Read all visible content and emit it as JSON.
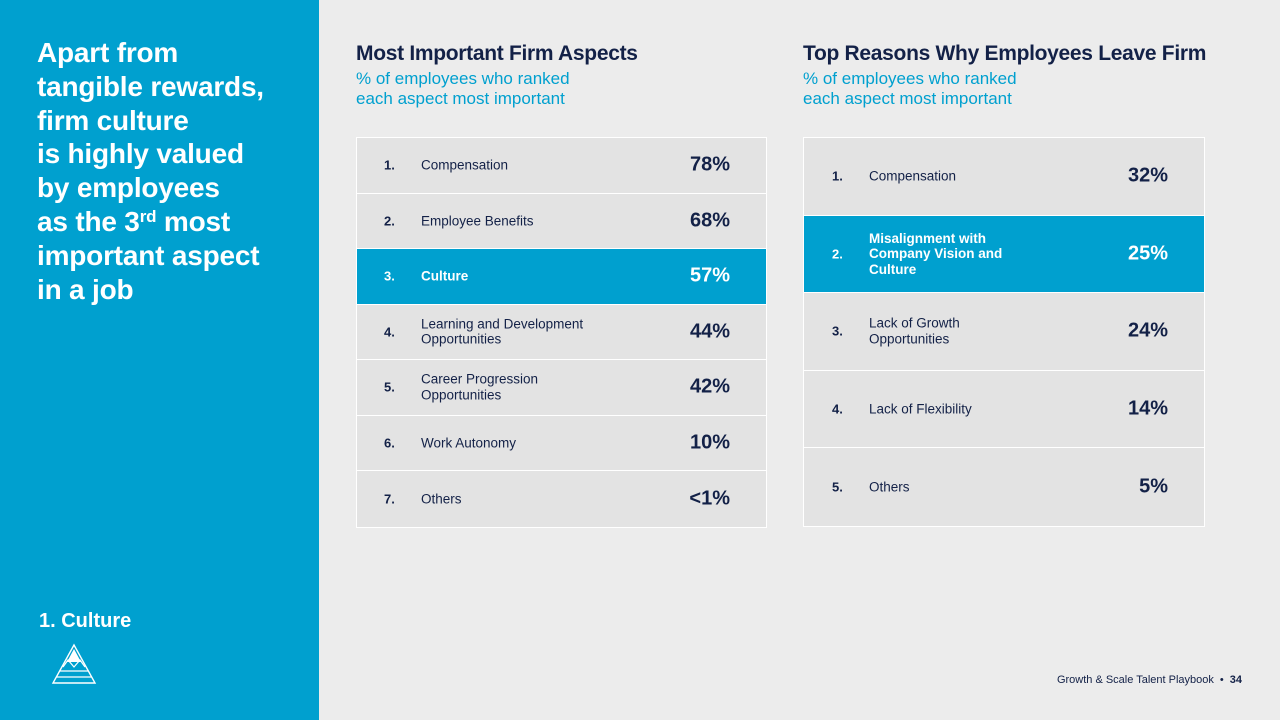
{
  "left_panel": {
    "headline_lines": [
      "Apart from",
      "tangible rewards,",
      "firm culture",
      "is highly valued",
      "by employees",
      "important aspect",
      "in a job"
    ],
    "headline_rank_prefix": "as the 3",
    "headline_rank_suffix": "rd",
    "headline_rank_rest": " most",
    "section_label": "1. Culture",
    "logo_icon": "pyramid-logo-icon"
  },
  "important_aspects": {
    "title": "Most Important Firm Aspects",
    "subtitle_lines": [
      "% of employees who ranked",
      "each aspect most important"
    ],
    "rows": [
      {
        "rank": "1.",
        "label": "Compensation",
        "pct": "78%",
        "highlight": false
      },
      {
        "rank": "2.",
        "label": "Employee Benefits",
        "pct": "68%",
        "highlight": false
      },
      {
        "rank": "3.",
        "label": "Culture",
        "pct": "57%",
        "highlight": true
      },
      {
        "rank": "4.",
        "label": "Learning and Development Opportunities",
        "pct": "44%",
        "highlight": false
      },
      {
        "rank": "5.",
        "label": "Career Progression Opportunities",
        "pct": "42%",
        "highlight": false
      },
      {
        "rank": "6.",
        "label": "Work Autonomy",
        "pct": "10%",
        "highlight": false
      },
      {
        "rank": "7.",
        "label": "Others",
        "pct": "<1%",
        "highlight": false
      }
    ]
  },
  "leave_reasons": {
    "title": "Top Reasons Why Employees Leave Firm",
    "subtitle_lines": [
      "% of employees who ranked",
      "each aspect most important"
    ],
    "rows": [
      {
        "rank": "1.",
        "label": "Compensation",
        "pct": "32%",
        "highlight": false
      },
      {
        "rank": "2.",
        "label": "Misalignment with Company Vision and Culture",
        "pct": "25%",
        "highlight": true
      },
      {
        "rank": "3.",
        "label": "Lack of Growth Opportunities",
        "pct": "24%",
        "highlight": false
      },
      {
        "rank": "4.",
        "label": "Lack of Flexibility",
        "pct": "14%",
        "highlight": false
      },
      {
        "rank": "5.",
        "label": "Others",
        "pct": "5%",
        "highlight": false
      }
    ]
  },
  "footer": {
    "doc_title": "Growth & Scale Talent Playbook",
    "separator": "•",
    "page_number": "34"
  },
  "colors": {
    "accent": "#00a0cf",
    "navy": "#132147",
    "background": "#ececec",
    "row_fill": "#e3e3e3"
  }
}
